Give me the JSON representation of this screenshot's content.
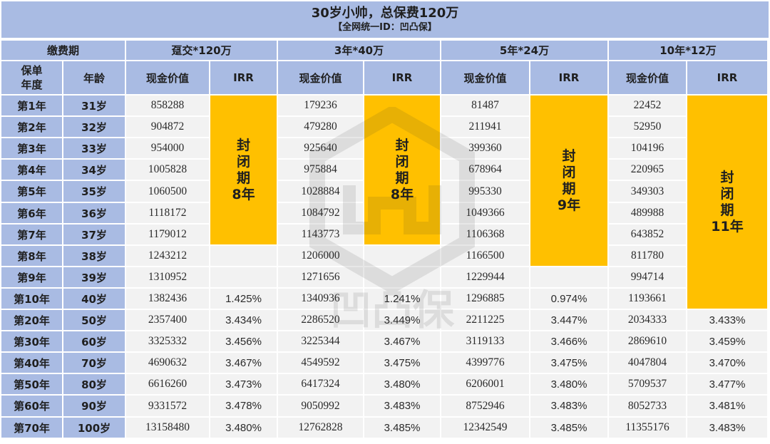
{
  "title": "30岁小帅，总保费120万",
  "subtitle": "【全网统一ID：凹凸保】",
  "header": {
    "pay_period": "缴费期",
    "policy_year": "保单\n年度",
    "age": "年龄",
    "cash_value": "现金价值",
    "irr": "IRR"
  },
  "plans": [
    {
      "label": "趸交*120万",
      "closed": "封\n闭\n期\n8年",
      "closed_rows": 7
    },
    {
      "label": "3年*40万",
      "closed": "封\n闭\n期\n8年",
      "closed_rows": 7
    },
    {
      "label": "5年*24万",
      "closed": "封\n闭\n期\n9年",
      "closed_rows": 8
    },
    {
      "label": "10年*12万",
      "closed": "封\n闭\n期\n11年",
      "closed_rows": 10
    }
  ],
  "rows": [
    {
      "year": "第1年",
      "age": "31岁",
      "v": [
        "858288",
        "179236",
        "81487",
        "22452"
      ],
      "irr": [
        "",
        "",
        "",
        ""
      ]
    },
    {
      "year": "第2年",
      "age": "32岁",
      "v": [
        "904872",
        "479280",
        "211941",
        "52950"
      ],
      "irr": [
        "",
        "",
        "",
        ""
      ]
    },
    {
      "year": "第3年",
      "age": "33岁",
      "v": [
        "954000",
        "925640",
        "399360",
        "104196"
      ],
      "irr": [
        "",
        "",
        "",
        ""
      ]
    },
    {
      "year": "第4年",
      "age": "34岁",
      "v": [
        "1005828",
        "975884",
        "678964",
        "220965"
      ],
      "irr": [
        "",
        "",
        "",
        ""
      ]
    },
    {
      "year": "第5年",
      "age": "35岁",
      "v": [
        "1060500",
        "1028884",
        "995330",
        "349303"
      ],
      "irr": [
        "",
        "",
        "",
        ""
      ]
    },
    {
      "year": "第6年",
      "age": "36岁",
      "v": [
        "1118172",
        "1084792",
        "1049366",
        "489988"
      ],
      "irr": [
        "",
        "",
        "",
        ""
      ]
    },
    {
      "year": "第7年",
      "age": "37岁",
      "v": [
        "1179012",
        "1143773",
        "1106368",
        "643852"
      ],
      "irr": [
        "",
        "",
        "",
        ""
      ]
    },
    {
      "year": "第8年",
      "age": "38岁",
      "v": [
        "1243212",
        "1206000",
        "1166500",
        "811780"
      ],
      "irr": [
        "",
        "",
        "",
        ""
      ]
    },
    {
      "year": "第9年",
      "age": "39岁",
      "v": [
        "1310952",
        "1271656",
        "1229944",
        "994714"
      ],
      "irr": [
        "",
        "",
        "",
        ""
      ]
    },
    {
      "year": "第10年",
      "age": "40岁",
      "v": [
        "1382436",
        "1340936",
        "1296885",
        "1193661"
      ],
      "irr": [
        "1.425%",
        "1.241%",
        "0.974%",
        ""
      ]
    },
    {
      "year": "第20年",
      "age": "50岁",
      "v": [
        "2357400",
        "2286520",
        "2211225",
        "2034333"
      ],
      "irr": [
        "3.434%",
        "3.449%",
        "3.447%",
        "3.433%"
      ]
    },
    {
      "year": "第30年",
      "age": "60岁",
      "v": [
        "3325332",
        "3225344",
        "3119133",
        "2869610"
      ],
      "irr": [
        "3.456%",
        "3.467%",
        "3.466%",
        "3.459%"
      ]
    },
    {
      "year": "第40年",
      "age": "70岁",
      "v": [
        "4690632",
        "4549592",
        "4399776",
        "4047804"
      ],
      "irr": [
        "3.467%",
        "3.475%",
        "3.475%",
        "3.470%"
      ]
    },
    {
      "year": "第50年",
      "age": "80岁",
      "v": [
        "6616260",
        "6417324",
        "6206001",
        "5709537"
      ],
      "irr": [
        "3.473%",
        "3.480%",
        "3.480%",
        "3.477%"
      ]
    },
    {
      "year": "第60年",
      "age": "90岁",
      "v": [
        "9331572",
        "9050992",
        "8752946",
        "8052733"
      ],
      "irr": [
        "3.478%",
        "3.483%",
        "3.483%",
        "3.481%"
      ]
    },
    {
      "year": "第70年",
      "age": "100岁",
      "v": [
        "13158480",
        "12762828",
        "12342549",
        "11355176"
      ],
      "irr": [
        "3.480%",
        "3.485%",
        "3.485%",
        "3.483%"
      ]
    }
  ],
  "watermark": "凹凸保",
  "colors": {
    "header": "#a9bbe3",
    "closed": "#ffc000",
    "body": "#f2f2f2"
  }
}
